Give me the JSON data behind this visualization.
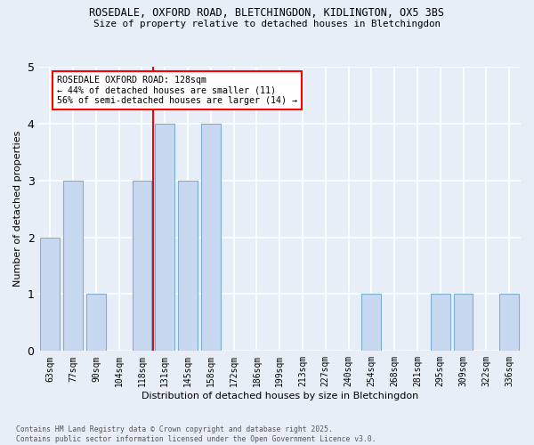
{
  "title1": "ROSEDALE, OXFORD ROAD, BLETCHINGDON, KIDLINGTON, OX5 3BS",
  "title2": "Size of property relative to detached houses in Bletchingdon",
  "xlabel": "Distribution of detached houses by size in Bletchingdon",
  "ylabel": "Number of detached properties",
  "categories": [
    "63sqm",
    "77sqm",
    "90sqm",
    "104sqm",
    "118sqm",
    "131sqm",
    "145sqm",
    "158sqm",
    "172sqm",
    "186sqm",
    "199sqm",
    "213sqm",
    "227sqm",
    "240sqm",
    "254sqm",
    "268sqm",
    "281sqm",
    "295sqm",
    "309sqm",
    "322sqm",
    "336sqm"
  ],
  "values": [
    2,
    3,
    1,
    0,
    3,
    4,
    3,
    4,
    0,
    0,
    0,
    0,
    0,
    0,
    1,
    0,
    0,
    1,
    1,
    0,
    1
  ],
  "bar_color": "#c8d8f0",
  "bar_edge_color": "#7bafd4",
  "vline_x": 4.5,
  "annotation_text": "ROSEDALE OXFORD ROAD: 128sqm\n← 44% of detached houses are smaller (11)\n56% of semi-detached houses are larger (14) →",
  "annotation_box_color": "white",
  "annotation_box_edge_color": "red",
  "vline_color": "red",
  "ylim": [
    0,
    5
  ],
  "yticks": [
    0,
    1,
    2,
    3,
    4,
    5
  ],
  "footer1": "Contains HM Land Registry data © Crown copyright and database right 2025.",
  "footer2": "Contains public sector information licensed under the Open Government Licence v3.0.",
  "bg_color": "#e8eef8",
  "grid_color": "white"
}
